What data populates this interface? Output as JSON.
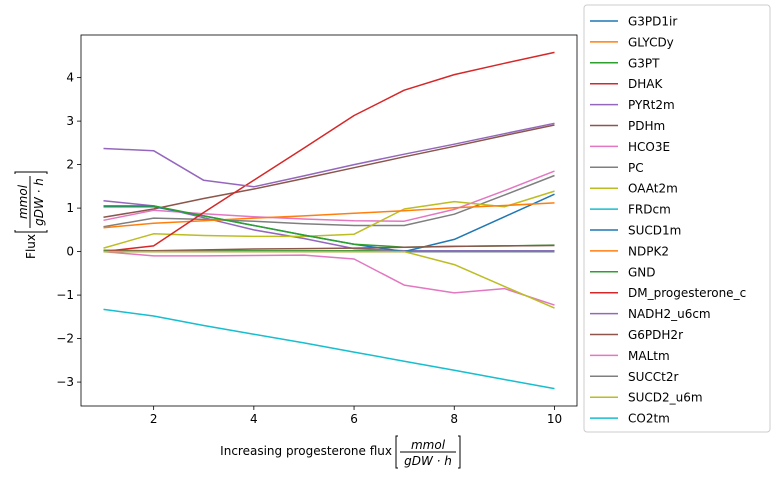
{
  "chart_data": {
    "type": "line",
    "title": "",
    "xlabel": {
      "prefix": "Increasing progesterone flux",
      "unit_numerator": "mmol",
      "unit_denominator": "gDW · h"
    },
    "ylabel": {
      "prefix": "Flux",
      "unit_numerator": "mmol",
      "unit_denominator": "gDW · h"
    },
    "xlim": [
      0.55,
      10.45
    ],
    "ylim": [
      -3.55,
      4.98
    ],
    "xticks": [
      2,
      4,
      6,
      8,
      10
    ],
    "yticks": [
      -3,
      -2,
      -1,
      0,
      1,
      2,
      3,
      4
    ],
    "grid": false,
    "legend_position": "outside-right",
    "x": [
      1,
      2,
      3,
      4,
      5,
      6,
      7,
      8,
      9,
      10
    ],
    "series": [
      {
        "name": "G3PD1ir",
        "color": "#1f77b4",
        "values": [
          0.02,
          0.0,
          0.0,
          0.0,
          0.0,
          0.0,
          0.0,
          0.0,
          0.0,
          0.0
        ]
      },
      {
        "name": "GLYCDy",
        "color": "#ff7f0e",
        "values": [
          0.0,
          0.0,
          0.0,
          0.0,
          0.0,
          0.0,
          0.0,
          0.0,
          0.0,
          0.0
        ]
      },
      {
        "name": "G3PT",
        "color": "#2ca02c",
        "values": [
          0.03,
          0.02,
          0.02,
          0.02,
          0.02,
          0.02,
          0.02,
          0.02,
          0.02,
          0.02
        ]
      },
      {
        "name": "DHAK",
        "color": "#d62728",
        "values": [
          0.0,
          0.0,
          0.0,
          0.0,
          0.0,
          0.0,
          0.0,
          0.0,
          0.0,
          0.0
        ]
      },
      {
        "name": "PYRt2m",
        "color": "#9467bd",
        "values": [
          1.17,
          1.05,
          0.78,
          0.5,
          0.3,
          0.07,
          0.02,
          0.02,
          0.02,
          0.02
        ]
      },
      {
        "name": "PDHm",
        "color": "#8c564b",
        "values": [
          0.79,
          0.98,
          1.22,
          1.44,
          1.68,
          1.93,
          2.18,
          2.42,
          2.67,
          2.91
        ]
      },
      {
        "name": "HCO3E",
        "color": "#e377c2",
        "values": [
          0.72,
          0.95,
          0.87,
          0.8,
          0.75,
          0.71,
          0.7,
          0.97,
          1.4,
          1.85
        ]
      },
      {
        "name": "PC",
        "color": "#7f7f7f",
        "values": [
          0.57,
          0.77,
          0.74,
          0.7,
          0.64,
          0.6,
          0.6,
          0.86,
          1.3,
          1.75
        ]
      },
      {
        "name": "OAAt2m",
        "color": "#bcbd22",
        "values": [
          0.08,
          0.41,
          0.37,
          0.35,
          0.35,
          0.4,
          0.98,
          1.15,
          1.03,
          1.39
        ]
      },
      {
        "name": "FRDcm",
        "color": "#17becf",
        "values": [
          0.0,
          0.0,
          0.0,
          0.0,
          0.0,
          0.0,
          0.0,
          0.0,
          0.0,
          0.0
        ]
      },
      {
        "name": "SUCD1m",
        "color": "#1f77b4",
        "values": [
          1.03,
          1.03,
          0.82,
          0.6,
          0.38,
          0.17,
          0.0,
          0.28,
          0.8,
          1.32
        ]
      },
      {
        "name": "NDPK2",
        "color": "#ff7f0e",
        "values": [
          0.55,
          0.65,
          0.71,
          0.77,
          0.82,
          0.88,
          0.94,
          1.01,
          1.06,
          1.12
        ]
      },
      {
        "name": "GND",
        "color": "#2ca02c",
        "values": [
          1.05,
          1.05,
          0.82,
          0.6,
          0.38,
          0.17,
          0.1,
          0.12,
          0.13,
          0.15
        ]
      },
      {
        "name": "DM_progesterone_c",
        "color": "#d62728",
        "values": [
          0.0,
          0.13,
          0.9,
          1.64,
          2.38,
          3.13,
          3.71,
          4.07,
          4.33,
          4.58
        ]
      },
      {
        "name": "NADH2_u6cm",
        "color": "#9467bd",
        "values": [
          2.37,
          2.32,
          1.64,
          1.49,
          1.74,
          2.0,
          2.24,
          2.47,
          2.71,
          2.95
        ]
      },
      {
        "name": "G6PDH2r",
        "color": "#8c564b",
        "values": [
          0.01,
          0.02,
          0.04,
          0.06,
          0.07,
          0.08,
          0.1,
          0.12,
          0.13,
          0.14
        ]
      },
      {
        "name": "MALtm",
        "color": "#e377c2",
        "values": [
          0.0,
          -0.1,
          -0.1,
          -0.09,
          -0.08,
          -0.17,
          -0.77,
          -0.95,
          -0.85,
          -1.23
        ]
      },
      {
        "name": "SUCCt2r",
        "color": "#7f7f7f",
        "values": [
          0.0,
          0.0,
          0.0,
          0.0,
          0.0,
          0.0,
          0.0,
          0.0,
          0.0,
          0.0
        ]
      },
      {
        "name": "SUCD2_u6m",
        "color": "#bcbd22",
        "values": [
          0.0,
          0.0,
          0.0,
          0.0,
          0.0,
          0.0,
          0.0,
          -0.3,
          -0.8,
          -1.3
        ]
      },
      {
        "name": "CO2tm",
        "color": "#17becf",
        "values": [
          -1.33,
          -1.48,
          -1.7,
          -1.9,
          -2.1,
          -2.31,
          -2.52,
          -2.73,
          -2.94,
          -3.15
        ]
      }
    ]
  }
}
